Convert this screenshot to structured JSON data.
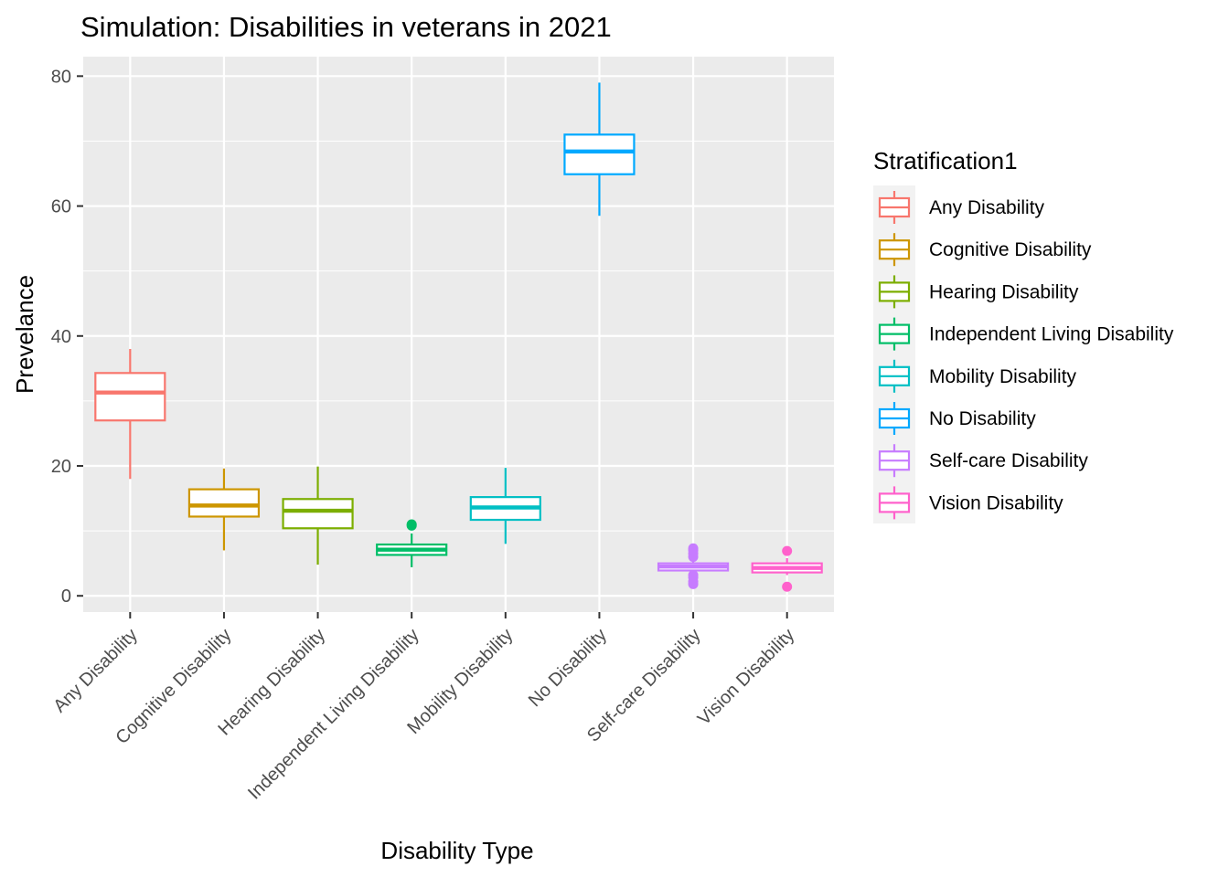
{
  "chart_data": {
    "type": "boxplot",
    "title": "Simulation: Disabilities in veterans in 2021",
    "xlabel": "Disability Type",
    "ylabel": "Prevelance",
    "ylim": [
      -2.5,
      83
    ],
    "yticks": [
      0,
      20,
      40,
      60,
      80
    ],
    "grid": true,
    "legend_title": "Stratification1",
    "legend_position": "right",
    "categories": [
      "Any Disability",
      "Cognitive Disability",
      "Hearing Disability",
      "Independent Living Disability",
      "Mobility Disability",
      "No Disability",
      "Self-care Disability",
      "Vision Disability"
    ],
    "colors": [
      "#F8766D",
      "#CD9600",
      "#7CAE00",
      "#00BE67",
      "#00BFC4",
      "#00A9FF",
      "#C77CFF",
      "#FF61CC"
    ],
    "series": [
      {
        "name": "Any Disability",
        "min": 18,
        "q1": 27,
        "median": 31.3,
        "q3": 34.3,
        "max": 38,
        "outliers": []
      },
      {
        "name": "Cognitive Disability",
        "min": 7,
        "q1": 12.2,
        "median": 13.9,
        "q3": 16.4,
        "max": 19.6,
        "outliers": []
      },
      {
        "name": "Hearing Disability",
        "min": 4.8,
        "q1": 10.4,
        "median": 13.1,
        "q3": 14.9,
        "max": 19.9,
        "outliers": []
      },
      {
        "name": "Independent Living Disability",
        "min": 4.4,
        "q1": 6.3,
        "median": 7.1,
        "q3": 7.9,
        "max": 9.6,
        "outliers": [
          10.8,
          11
        ]
      },
      {
        "name": "Mobility Disability",
        "min": 8,
        "q1": 11.7,
        "median": 13.6,
        "q3": 15.2,
        "max": 19.7,
        "outliers": []
      },
      {
        "name": "No Disability",
        "min": 58.5,
        "q1": 64.9,
        "median": 68.4,
        "q3": 71,
        "max": 79,
        "outliers": []
      },
      {
        "name": "Self-care Disability",
        "min": 3.9,
        "q1": 3.9,
        "median": 4.5,
        "q3": 5,
        "max": 5.5,
        "outliers": [
          1.8,
          2.2,
          2.8,
          3.2,
          6,
          6.5,
          7,
          7.3
        ]
      },
      {
        "name": "Vision Disability",
        "min": 3.2,
        "q1": 3.6,
        "median": 4.3,
        "q3": 5,
        "max": 5.8,
        "outliers": [
          1.4,
          6.9
        ]
      }
    ]
  }
}
